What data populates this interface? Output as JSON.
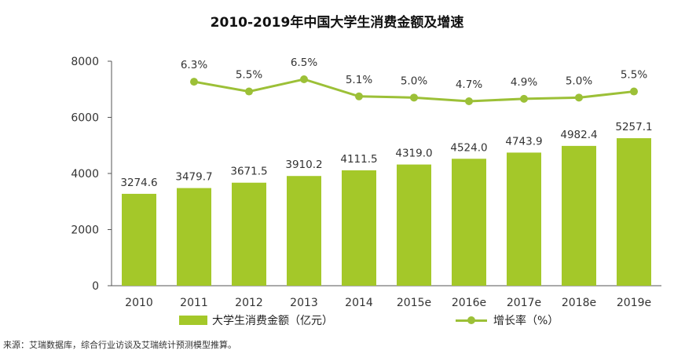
{
  "title": "2010-2019年中国大学生消费金额及增速",
  "source": "来源：艾瑞数据库，综合行业访谈及艾瑞统计预测模型推算。",
  "colors": {
    "bar": "#a4c829",
    "line": "#9cc037",
    "axis": "#555555",
    "text": "#333333"
  },
  "legend": {
    "bar_label": "大学生消费金额（亿元）",
    "line_label": "增长率（%）"
  },
  "chart_data": {
    "type": "bar",
    "title": "2010-2019年中国大学生消费金额及增速",
    "categories": [
      "2010",
      "2011",
      "2012",
      "2013",
      "2014",
      "2015e",
      "2016e",
      "2017e",
      "2018e",
      "2019e"
    ],
    "series": [
      {
        "name": "大学生消费金额（亿元）",
        "type": "bar",
        "values": [
          3274.6,
          3479.7,
          3671.5,
          3910.2,
          4111.5,
          4319.0,
          4524.0,
          4743.9,
          4982.4,
          5257.1
        ],
        "labels": [
          "3274.6",
          "3479.7",
          "3671.5",
          "3910.2",
          "4111.5",
          "4319.0",
          "4524.0",
          "4743.9",
          "4982.4",
          "5257.1"
        ]
      },
      {
        "name": "增长率（%）",
        "type": "line",
        "values": [
          null,
          6.3,
          5.5,
          6.5,
          5.1,
          5.0,
          4.7,
          4.9,
          5.0,
          5.5
        ],
        "labels": [
          "",
          "6.3%",
          "5.5%",
          "6.5%",
          "5.1%",
          "5.0%",
          "4.7%",
          "4.9%",
          "5.0%",
          "5.5%"
        ]
      }
    ],
    "ylim": [
      0,
      8000
    ],
    "yticks": [
      0,
      2000,
      4000,
      6000,
      8000
    ],
    "ytick_labels": [
      "0",
      "2000",
      "4000",
      "6000",
      "8000"
    ],
    "secondary_axis_shown": false,
    "grid": false,
    "legend_position": "bottom"
  }
}
